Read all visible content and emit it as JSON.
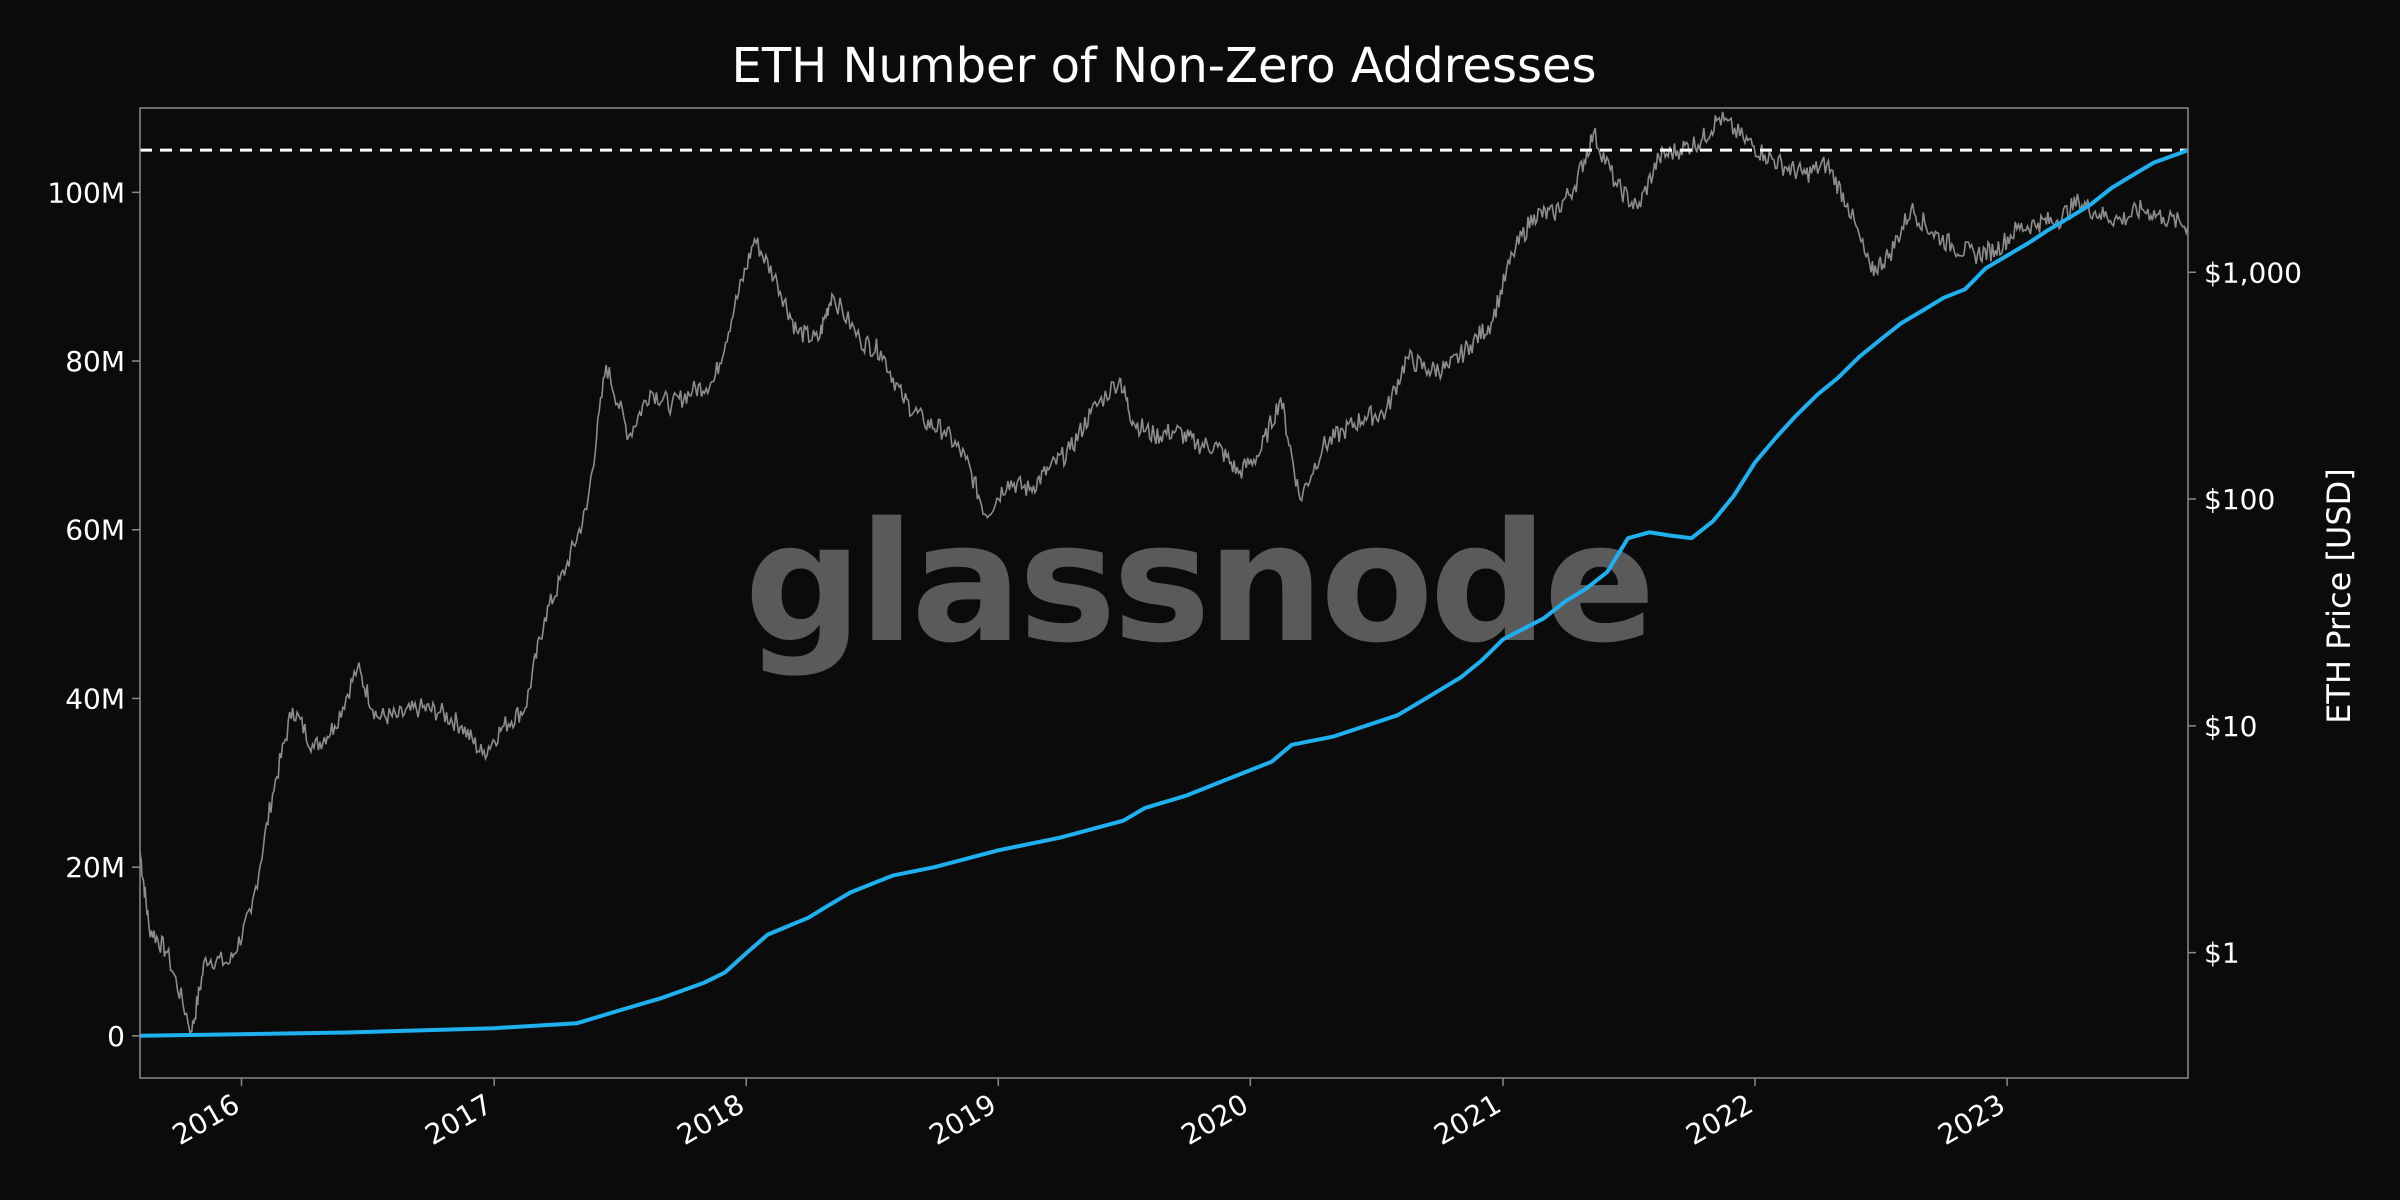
{
  "chart_data": {
    "type": "line",
    "title": "ETH Number of Non-Zero Addresses",
    "watermark": "glassnode",
    "x_ticks": [
      "2016",
      "2017",
      "2018",
      "2019",
      "2020",
      "2021",
      "2022",
      "2023"
    ],
    "xlim": [
      "2015-08-07",
      "2023-09-20"
    ],
    "y_left": {
      "ticks": [
        {
          "value": 0,
          "label": "0"
        },
        {
          "value": 20000000,
          "label": "20M"
        },
        {
          "value": 40000000,
          "label": "40M"
        },
        {
          "value": 60000000,
          "label": "60M"
        },
        {
          "value": 80000000,
          "label": "80M"
        },
        {
          "value": 100000000,
          "label": "100M"
        }
      ],
      "ylim": [
        -5000000,
        110000000
      ]
    },
    "y_right": {
      "label": "ETH Price [USD]",
      "scale": "log",
      "ticks": [
        {
          "value": 1,
          "label": "$1"
        },
        {
          "value": 10,
          "label": "$10"
        },
        {
          "value": 100,
          "label": "$100"
        },
        {
          "value": 1000,
          "label": "$1,000"
        }
      ],
      "ylim": [
        0.28,
        5300
      ]
    },
    "ath_reference_line": {
      "value": 105000000,
      "style": "dashed",
      "color": "#ffffff"
    },
    "series": [
      {
        "axis": "left",
        "color": "#1fb0f0",
        "points": [
          [
            "2015-08-07",
            0
          ],
          [
            "2016-06-01",
            400000
          ],
          [
            "2017-01-01",
            900000
          ],
          [
            "2017-05-01",
            1500000
          ],
          [
            "2017-07-01",
            3000000
          ],
          [
            "2017-09-01",
            4500000
          ],
          [
            "2017-11-01",
            6300000
          ],
          [
            "2017-12-01",
            7500000
          ],
          [
            "2018-01-01",
            9800000
          ],
          [
            "2018-02-01",
            12000000
          ],
          [
            "2018-04-01",
            14000000
          ],
          [
            "2018-05-01",
            15500000
          ],
          [
            "2018-06-01",
            17000000
          ],
          [
            "2018-08-01",
            19000000
          ],
          [
            "2018-10-01",
            20000000
          ],
          [
            "2019-01-01",
            22000000
          ],
          [
            "2019-04-01",
            23500000
          ],
          [
            "2019-07-01",
            25500000
          ],
          [
            "2019-08-01",
            27000000
          ],
          [
            "2019-10-01",
            28500000
          ],
          [
            "2019-12-01",
            30500000
          ],
          [
            "2020-02-01",
            32500000
          ],
          [
            "2020-03-01",
            34500000
          ],
          [
            "2020-05-01",
            35500000
          ],
          [
            "2020-08-01",
            38000000
          ],
          [
            "2020-09-01",
            39500000
          ],
          [
            "2020-11-01",
            42500000
          ],
          [
            "2020-12-01",
            44500000
          ],
          [
            "2021-01-01",
            47000000
          ],
          [
            "2021-03-01",
            49500000
          ],
          [
            "2021-04-01",
            51500000
          ],
          [
            "2021-05-01",
            53000000
          ],
          [
            "2021-06-01",
            55000000
          ],
          [
            "2021-07-01",
            59000000
          ],
          [
            "2021-08-01",
            59700000
          ],
          [
            "2021-09-01",
            59300000
          ],
          [
            "2021-10-01",
            59000000
          ],
          [
            "2021-11-01",
            61000000
          ],
          [
            "2021-12-01",
            64000000
          ],
          [
            "2022-01-01",
            68000000
          ],
          [
            "2022-02-01",
            71000000
          ],
          [
            "2022-03-01",
            73500000
          ],
          [
            "2022-04-01",
            76000000
          ],
          [
            "2022-05-01",
            78000000
          ],
          [
            "2022-06-01",
            80500000
          ],
          [
            "2022-07-01",
            82500000
          ],
          [
            "2022-08-01",
            84500000
          ],
          [
            "2022-09-01",
            86000000
          ],
          [
            "2022-10-01",
            87500000
          ],
          [
            "2022-11-01",
            88500000
          ],
          [
            "2022-12-01",
            91000000
          ],
          [
            "2023-01-01",
            92500000
          ],
          [
            "2023-02-01",
            94000000
          ],
          [
            "2023-03-01",
            95500000
          ],
          [
            "2023-04-01",
            97000000
          ],
          [
            "2023-05-01",
            98500000
          ],
          [
            "2023-06-01",
            100500000
          ],
          [
            "2023-07-01",
            102000000
          ],
          [
            "2023-08-01",
            103500000
          ],
          [
            "2023-09-20",
            105000000
          ]
        ]
      },
      {
        "axis": "right",
        "color": "#8c8c8c",
        "points": [
          [
            "2015-08-07",
            2.8
          ],
          [
            "2015-08-20",
            1.3
          ],
          [
            "2015-09-15",
            1.0
          ],
          [
            "2015-10-21",
            0.45
          ],
          [
            "2015-11-10",
            0.95
          ],
          [
            "2015-12-15",
            0.9
          ],
          [
            "2016-01-15",
            1.5
          ],
          [
            "2016-02-15",
            5.0
          ],
          [
            "2016-03-15",
            12
          ],
          [
            "2016-04-15",
            8
          ],
          [
            "2016-05-15",
            10
          ],
          [
            "2016-06-17",
            18
          ],
          [
            "2016-07-15",
            11
          ],
          [
            "2016-08-15",
            11
          ],
          [
            "2016-09-15",
            12
          ],
          [
            "2016-10-15",
            11.5
          ],
          [
            "2016-11-15",
            10
          ],
          [
            "2016-12-15",
            7.5
          ],
          [
            "2017-01-15",
            10
          ],
          [
            "2017-02-15",
            12
          ],
          [
            "2017-03-15",
            30
          ],
          [
            "2017-04-15",
            50
          ],
          [
            "2017-05-15",
            90
          ],
          [
            "2017-06-12",
            390
          ],
          [
            "2017-07-15",
            190
          ],
          [
            "2017-08-15",
            300
          ],
          [
            "2017-09-15",
            260
          ],
          [
            "2017-10-15",
            300
          ],
          [
            "2017-11-15",
            330
          ],
          [
            "2017-12-15",
            700
          ],
          [
            "2018-01-13",
            1400
          ],
          [
            "2018-02-15",
            900
          ],
          [
            "2018-03-15",
            550
          ],
          [
            "2018-04-15",
            500
          ],
          [
            "2018-05-05",
            800
          ],
          [
            "2018-06-15",
            500
          ],
          [
            "2018-07-15",
            450
          ],
          [
            "2018-08-15",
            280
          ],
          [
            "2018-09-15",
            220
          ],
          [
            "2018-10-15",
            200
          ],
          [
            "2018-11-15",
            150
          ],
          [
            "2018-12-14",
            85
          ],
          [
            "2019-01-15",
            120
          ],
          [
            "2019-02-15",
            110
          ],
          [
            "2019-03-15",
            135
          ],
          [
            "2019-04-15",
            165
          ],
          [
            "2019-05-15",
            240
          ],
          [
            "2019-06-26",
            340
          ],
          [
            "2019-07-15",
            220
          ],
          [
            "2019-08-15",
            190
          ],
          [
            "2019-09-15",
            200
          ],
          [
            "2019-10-15",
            175
          ],
          [
            "2019-11-15",
            170
          ],
          [
            "2019-12-15",
            130
          ],
          [
            "2020-01-15",
            160
          ],
          [
            "2020-02-14",
            280
          ],
          [
            "2020-03-13",
            100
          ],
          [
            "2020-04-15",
            170
          ],
          [
            "2020-05-15",
            200
          ],
          [
            "2020-06-15",
            230
          ],
          [
            "2020-07-15",
            240
          ],
          [
            "2020-08-15",
            420
          ],
          [
            "2020-09-15",
            370
          ],
          [
            "2020-10-15",
            380
          ],
          [
            "2020-11-15",
            480
          ],
          [
            "2020-12-15",
            600
          ],
          [
            "2021-01-15",
            1200
          ],
          [
            "2021-02-15",
            1800
          ],
          [
            "2021-03-15",
            1800
          ],
          [
            "2021-04-15",
            2400
          ],
          [
            "2021-05-12",
            4100
          ],
          [
            "2021-06-15",
            2400
          ],
          [
            "2021-07-15",
            1900
          ],
          [
            "2021-08-15",
            3200
          ],
          [
            "2021-09-15",
            3500
          ],
          [
            "2021-10-15",
            3800
          ],
          [
            "2021-11-10",
            4800
          ],
          [
            "2021-12-15",
            3900
          ],
          [
            "2022-01-15",
            3300
          ],
          [
            "2022-02-15",
            2900
          ],
          [
            "2022-03-15",
            2700
          ],
          [
            "2022-04-15",
            3000
          ],
          [
            "2022-05-15",
            2000
          ],
          [
            "2022-06-18",
            1000
          ],
          [
            "2022-07-15",
            1200
          ],
          [
            "2022-08-15",
            1900
          ],
          [
            "2022-09-15",
            1500
          ],
          [
            "2022-10-15",
            1300
          ],
          [
            "2022-11-15",
            1200
          ],
          [
            "2022-12-15",
            1250
          ],
          [
            "2023-01-15",
            1550
          ],
          [
            "2023-02-15",
            1650
          ],
          [
            "2023-03-15",
            1700
          ],
          [
            "2023-04-15",
            2050
          ],
          [
            "2023-05-15",
            1800
          ],
          [
            "2023-06-15",
            1700
          ],
          [
            "2023-07-15",
            1900
          ],
          [
            "2023-08-15",
            1750
          ],
          [
            "2023-09-20",
            1600
          ]
        ]
      }
    ]
  }
}
